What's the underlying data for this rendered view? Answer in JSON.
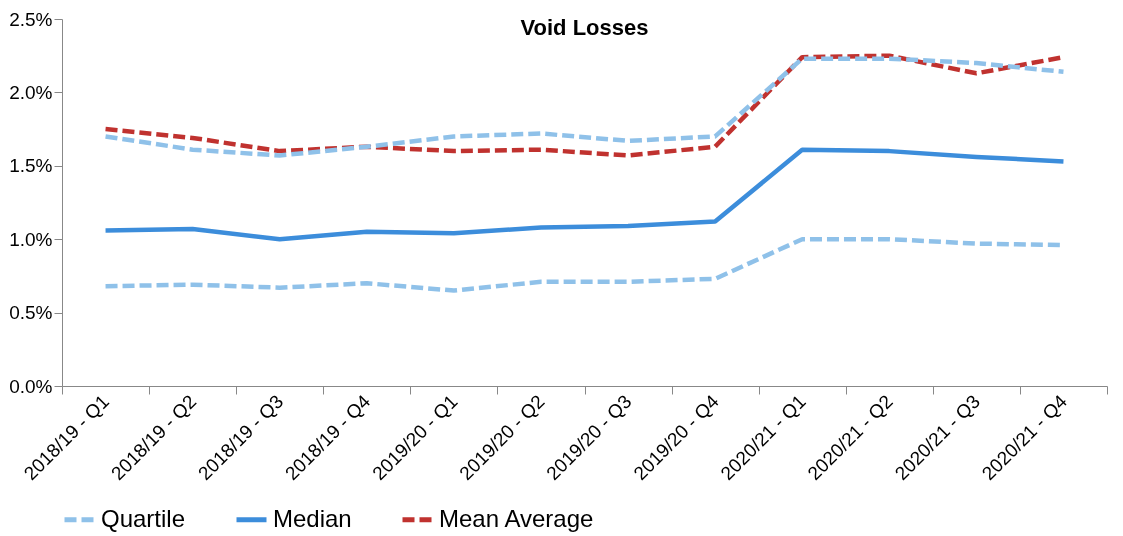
{
  "chart_data": {
    "type": "line",
    "title": "Void Losses",
    "categories": [
      "2018/19 - Q1",
      "2018/19 - Q2",
      "2018/19 - Q3",
      "2018/19 - Q4",
      "2019/20 - Q1",
      "2019/20 - Q2",
      "2019/20 - Q3",
      "2019/20 - Q4",
      "2020/21 - Q1",
      "2020/21 - Q2",
      "2020/21 - Q3",
      "2020/21 - Q4"
    ],
    "series": [
      {
        "name": "Quartile",
        "color": "#8fc1e9",
        "line_style": "dashed",
        "values": [
          0.68,
          0.69,
          0.67,
          0.7,
          0.65,
          0.71,
          0.71,
          0.73,
          1.0,
          1.0,
          0.97,
          0.96
        ]
      },
      {
        "name": "Median",
        "color": "#3c8ddb",
        "line_style": "solid",
        "values": [
          1.06,
          1.07,
          1.0,
          1.05,
          1.04,
          1.08,
          1.09,
          1.12,
          1.61,
          1.6,
          1.56,
          1.53
        ]
      },
      {
        "name": "Mean Average",
        "color": "#c0322f",
        "line_style": "dashed",
        "values": [
          1.75,
          1.69,
          1.6,
          1.63,
          1.6,
          1.61,
          1.57,
          1.63,
          2.24,
          2.25,
          2.13,
          2.24
        ]
      },
      {
        "color": "#8fc1e9",
        "line_style": "dashed",
        "values": [
          1.7,
          1.61,
          1.57,
          1.63,
          1.7,
          1.72,
          1.67,
          1.7,
          2.23,
          2.23,
          2.2,
          2.14
        ]
      }
    ],
    "ylim": [
      0,
      2.5
    ],
    "yticks": [
      {
        "value": 0,
        "label": "0.0%"
      },
      {
        "value": 0.5,
        "label": "0.5%"
      },
      {
        "value": 1,
        "label": "1.0%"
      },
      {
        "value": 1.5,
        "label": "1.5%"
      },
      {
        "value": 2,
        "label": "2.0%"
      },
      {
        "value": 2.5,
        "label": "2.5%"
      }
    ],
    "legend": "bottom",
    "grid": false
  }
}
